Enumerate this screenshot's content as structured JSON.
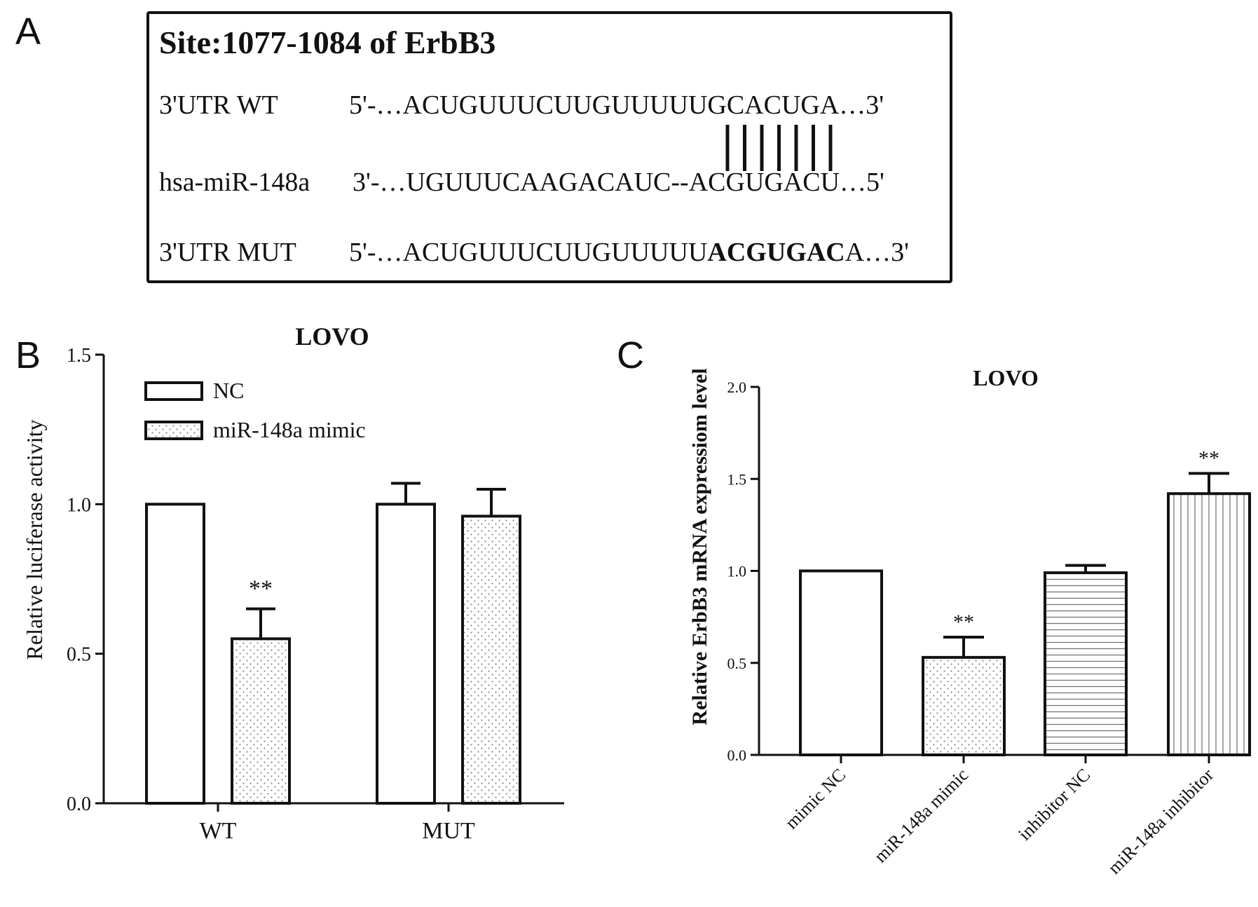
{
  "panel_letters": {
    "a": "A",
    "b": "B",
    "c": "C"
  },
  "sequence_panel": {
    "title": "Site:1077-1084 of ErbB3",
    "rows": [
      {
        "label": "3'UTR WT",
        "prefix": "5'-…ACUGUUUCUUGUUUUUGCACUGA…3'",
        "bold": "",
        "suffix": ""
      },
      {
        "label": "hsa-miR-148a",
        "prefix": "3'-…UGUUUCAAGACAUC--ACGUGACU…5'",
        "bold": "",
        "suffix": ""
      },
      {
        "label": "3'UTR MUT",
        "prefix": "5'-…ACUGUUUCUUGUUUUU",
        "bold": "ACGUGAC",
        "suffix": "A…3'"
      }
    ],
    "pair_count": 7
  },
  "chart_data": [
    {
      "type": "bar",
      "title": "LOVO",
      "ylabel": "Relative luciferase activity",
      "xlabel": "",
      "categories": [
        "WT",
        "MUT"
      ],
      "ylim": [
        0,
        1.5
      ],
      "yticks": [
        "0.0",
        "0.5",
        "1.0",
        "1.5"
      ],
      "series": [
        {
          "name": "NC",
          "values": [
            1.0,
            1.0
          ],
          "errors": [
            0.0,
            0.07
          ],
          "pattern": "none"
        },
        {
          "name": "miR-148a mimic",
          "values": [
            0.55,
            0.96
          ],
          "errors": [
            0.1,
            0.09
          ],
          "pattern": "dots"
        }
      ],
      "annotations": [
        {
          "category": "WT",
          "series": "miR-148a mimic",
          "text": "**"
        }
      ],
      "legend_position": "top-left",
      "grid": false
    },
    {
      "type": "bar",
      "title": "LOVO",
      "ylabel": "Relative ErbB3 mRNA expressiom level",
      "xlabel": "",
      "categories": [
        "mimic NC",
        "miR-148a mimic",
        "inhibitor NC",
        "miR-148a inhibitor"
      ],
      "values": [
        1.0,
        0.53,
        0.99,
        1.42
      ],
      "errors": [
        0.0,
        0.11,
        0.04,
        0.11
      ],
      "patterns": [
        "none",
        "dots",
        "hlines",
        "vlines"
      ],
      "ylim": [
        0,
        2.0
      ],
      "yticks": [
        "0.0",
        "0.5",
        "1.0",
        "1.5",
        "2.0"
      ],
      "annotations": [
        {
          "category": "miR-148a mimic",
          "text": "**"
        },
        {
          "category": "miR-148a inhibitor",
          "text": "**"
        }
      ],
      "grid": false
    }
  ]
}
